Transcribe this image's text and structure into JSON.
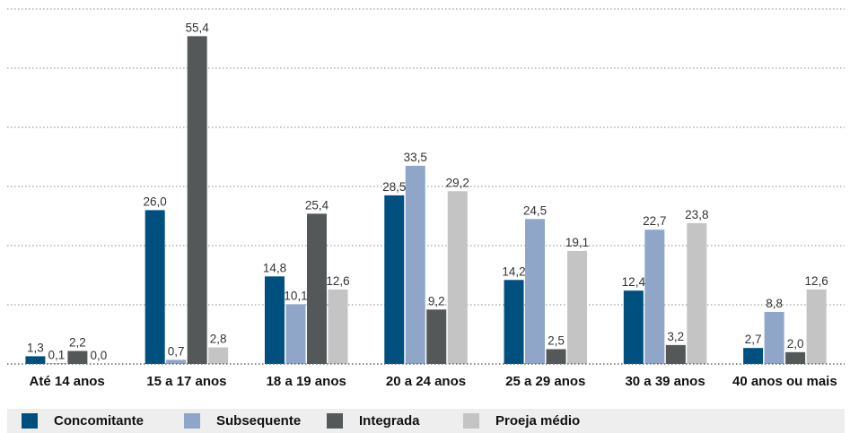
{
  "chart_data": {
    "type": "bar",
    "categories": [
      "Até 14 anos",
      "15 a 17 anos",
      "18 a 19 anos",
      "20 a 24 anos",
      "25 a 29 anos",
      "30 a 39 anos",
      "40 anos ou mais"
    ],
    "series": [
      {
        "name": "Concomitante",
        "color": "#00507f",
        "values": [
          1.3,
          26.0,
          14.8,
          28.5,
          14.2,
          12.4,
          2.7
        ],
        "labels": [
          "1,3",
          "26,0",
          "14,8",
          "28,5",
          "14,2",
          "12,4",
          "2,7"
        ]
      },
      {
        "name": "Subsequente",
        "color": "#8fa6c8",
        "values": [
          0.1,
          0.7,
          10.1,
          33.5,
          24.5,
          22.7,
          8.8
        ],
        "labels": [
          "0,1",
          "0,7",
          "10,1",
          "33,5",
          "24,5",
          "22,7",
          "8,8"
        ]
      },
      {
        "name": "Integrada",
        "color": "#555859",
        "values": [
          2.2,
          55.4,
          25.4,
          9.2,
          2.5,
          3.2,
          2.0
        ],
        "labels": [
          "2,2",
          "55,4",
          "25,4",
          "9,2",
          "2,5",
          "3,2",
          "2,0"
        ]
      },
      {
        "name": "Proeja médio",
        "color": "#c4c4c4",
        "values": [
          0.0,
          2.8,
          12.6,
          29.2,
          19.1,
          23.8,
          12.6
        ],
        "labels": [
          "0,0",
          "2,8",
          "12,6",
          "29,2",
          "19,1",
          "23,8",
          "12,6"
        ]
      }
    ],
    "ylim": [
      0,
      60
    ],
    "grid": true,
    "legend": "bottom"
  }
}
